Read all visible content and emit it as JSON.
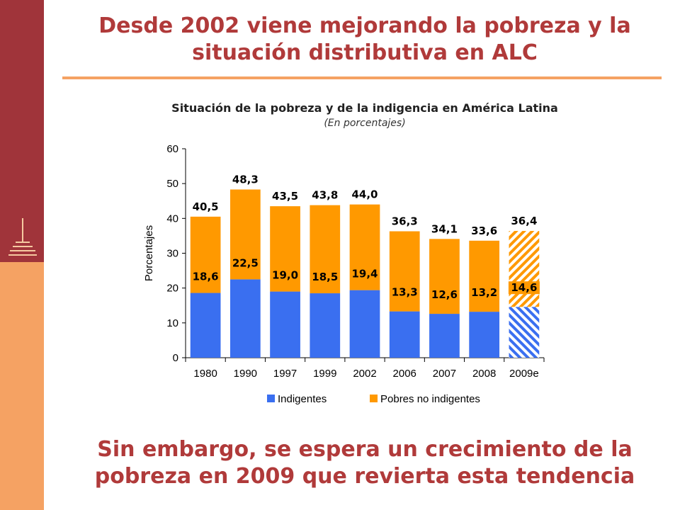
{
  "slide": {
    "title": "Desde 2002 viene mejorando la pobreza y la situación distributiva en ALC",
    "footer": "Sin embargo, se espera un crecimiento de la pobreza en 2009 que revierta esta tendencia"
  },
  "colors": {
    "side_dark": "#a0343a",
    "side_light": "#f5a263",
    "title": "#b03a3a",
    "indigentes": "#3a6ff0",
    "pobres_no_indigentes": "#ff9900"
  },
  "chart_data": {
    "type": "bar",
    "stacked": true,
    "title": "Situación de la pobreza y de la indigencia en América Latina",
    "subtitle": "(En porcentajes)",
    "xlabel": "",
    "ylabel": "Porcentajes",
    "ylim": [
      0,
      60
    ],
    "yticks": [
      0,
      10,
      20,
      30,
      40,
      50,
      60
    ],
    "categories": [
      "1980",
      "1990",
      "1997",
      "1999",
      "2002",
      "2006",
      "2007",
      "2008",
      "2009e"
    ],
    "series": [
      {
        "name": "Indigentes",
        "values": [
          18.6,
          22.5,
          19.0,
          18.5,
          19.4,
          13.3,
          12.6,
          13.2,
          14.6
        ]
      },
      {
        "name": "Pobres no indigentes",
        "values": [
          21.9,
          25.8,
          24.5,
          25.3,
          24.6,
          23.0,
          21.5,
          20.4,
          21.8
        ]
      }
    ],
    "inner_labels": [
      "18,6",
      "22,5",
      "19,0",
      "18,5",
      "19,4",
      "13,3",
      "12,6",
      "13,2",
      "14,6"
    ],
    "total_labels": [
      "40,5",
      "48,3",
      "43,5",
      "43,8",
      "44,0",
      "36,3",
      "34,1",
      "33,6",
      "36,4"
    ],
    "projected_category": "2009e",
    "legend_position": "bottom",
    "grid": false
  }
}
